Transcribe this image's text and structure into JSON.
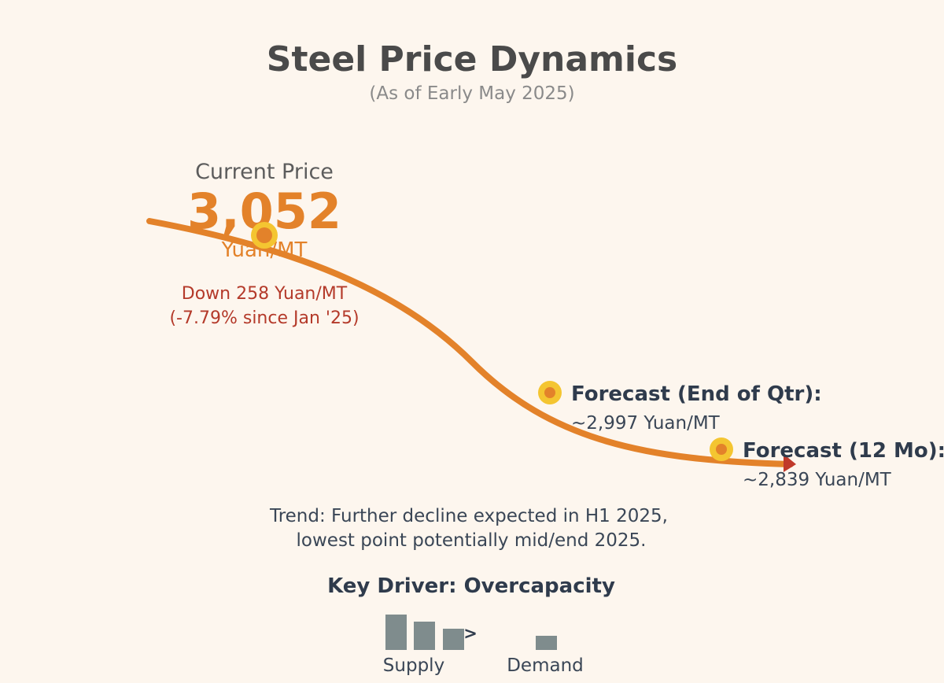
{
  "colors": {
    "background": "#fdf6ee",
    "trend_line": "#e3822a",
    "marker_outer": "#f4c531",
    "marker_inner": "#e3822a",
    "arrow_head": "#c0392b",
    "title": "#4a4a4a",
    "subtitle": "#8a8a8a",
    "current_label": "#5c5c5c",
    "price_accent": "#e3822a",
    "change_text": "#b43a2a",
    "body_text": "#3a4656",
    "bars": "#7f8c8d"
  },
  "header": {
    "title": "Steel Price Dynamics",
    "subtitle": "(As of Early May 2025)"
  },
  "current": {
    "label": "Current Price",
    "value": "3,052",
    "unit": "Yuan/MT",
    "change_line1": "Down 258 Yuan/MT",
    "change_line2": "(-7.79% since Jan '25)"
  },
  "forecasts": [
    {
      "label": "Forecast (End of Qtr):",
      "value": "~2,997 Yuan/MT"
    },
    {
      "label": "Forecast (12 Mo):",
      "value": "~2,839 Yuan/MT"
    }
  ],
  "trend": {
    "line1": "Trend: Further decline expected in H1 2025,",
    "line2": "lowest point potentially mid/end 2025."
  },
  "driver": {
    "title": "Key Driver: Overcapacity",
    "comparator": ">",
    "supply_label": "Supply",
    "demand_label": "Demand"
  },
  "chart_data": {
    "type": "line",
    "series": [
      {
        "points": [
          {
            "label": "Current Price",
            "y": 3052
          },
          {
            "label": "Forecast (End of Qtr)",
            "y": 2997
          },
          {
            "label": "Forecast (12 Mo)",
            "y": 2839
          }
        ]
      }
    ],
    "unit": "Yuan/MT",
    "grid": false,
    "legend": "none",
    "annotations": [
      "Down 258 Yuan/MT",
      "(-7.79% since Jan '25)"
    ]
  }
}
